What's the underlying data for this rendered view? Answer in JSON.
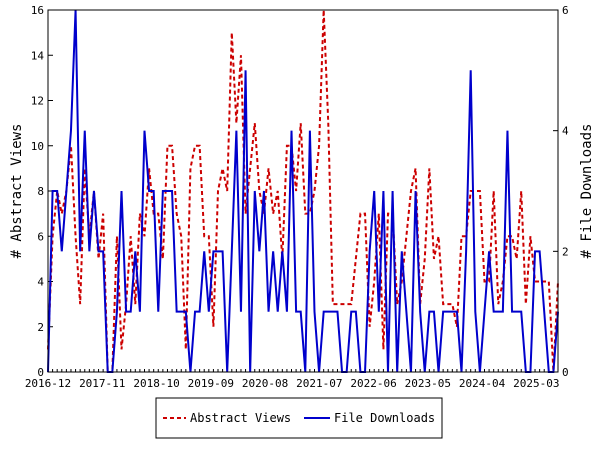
{
  "chart_data": {
    "type": "line",
    "title": "",
    "xlabel": "",
    "ylabel": "# Abstract Views",
    "y2label": "# File Downloads",
    "x_tick_labels": [
      "2016-12",
      "2017-11",
      "2018-10",
      "2019-09",
      "2020-08",
      "2021-07",
      "2022-06",
      "2023-05",
      "2024-04",
      "2025-03"
    ],
    "ylim": [
      0,
      16
    ],
    "y_ticks": [
      "0",
      "2",
      "4",
      "6",
      "8",
      "10",
      "12",
      "14",
      "16"
    ],
    "y2lim": [
      0,
      6
    ],
    "y2_ticks": [
      "0",
      "2",
      "4",
      "6"
    ],
    "grid": false,
    "legend_position": "bottom",
    "series": [
      {
        "name": "Abstract Views",
        "axis": "left",
        "color": "#cc0000",
        "style": "dashed",
        "values": [
          1,
          6,
          8,
          7,
          8,
          10,
          6,
          3,
          9,
          6,
          8,
          5,
          7,
          0,
          0,
          6,
          1,
          3,
          6,
          3,
          7,
          6,
          9,
          7,
          7,
          5,
          10,
          10,
          7,
          6,
          1,
          9,
          10,
          10,
          6,
          6,
          2,
          8,
          9,
          8,
          15,
          11,
          14,
          7,
          9,
          11,
          8,
          7,
          9,
          7,
          8,
          5,
          10,
          10,
          8,
          11,
          7,
          7,
          8,
          10,
          16,
          11,
          3,
          3,
          3,
          3,
          3,
          5,
          7,
          7,
          2,
          4,
          7,
          1,
          7,
          7,
          3,
          4,
          6,
          8,
          9,
          3,
          5,
          9,
          5,
          6,
          3,
          3,
          3,
          2,
          6,
          6,
          8,
          8,
          8,
          4,
          4,
          8,
          3,
          4,
          6,
          6,
          5,
          8,
          3,
          6,
          4,
          4,
          4,
          4,
          0,
          4
        ]
      },
      {
        "name": "File Downloads",
        "axis": "right",
        "color": "#0000cc",
        "style": "solid",
        "values": [
          0,
          3,
          3,
          2,
          3,
          4,
          6,
          2,
          4,
          2,
          3,
          2,
          2,
          0,
          0,
          1,
          3,
          1,
          1,
          2,
          1,
          4,
          3,
          3,
          1,
          3,
          3,
          3,
          1,
          1,
          1,
          0,
          1,
          1,
          2,
          1,
          2,
          2,
          2,
          0,
          2,
          4,
          1,
          5,
          0,
          3,
          2,
          3,
          1,
          2,
          1,
          2,
          1,
          4,
          1,
          1,
          0,
          4,
          1,
          0,
          1,
          1,
          1,
          1,
          0,
          0,
          1,
          1,
          0,
          0,
          2,
          3,
          1,
          3,
          0,
          3,
          0,
          2,
          1,
          0,
          3,
          1,
          0,
          1,
          1,
          0,
          1,
          1,
          1,
          1,
          0,
          2,
          5,
          1,
          0,
          1,
          2,
          1,
          1,
          1,
          4,
          1,
          1,
          1,
          0,
          0,
          2,
          2,
          1,
          0,
          0,
          1
        ]
      }
    ]
  }
}
